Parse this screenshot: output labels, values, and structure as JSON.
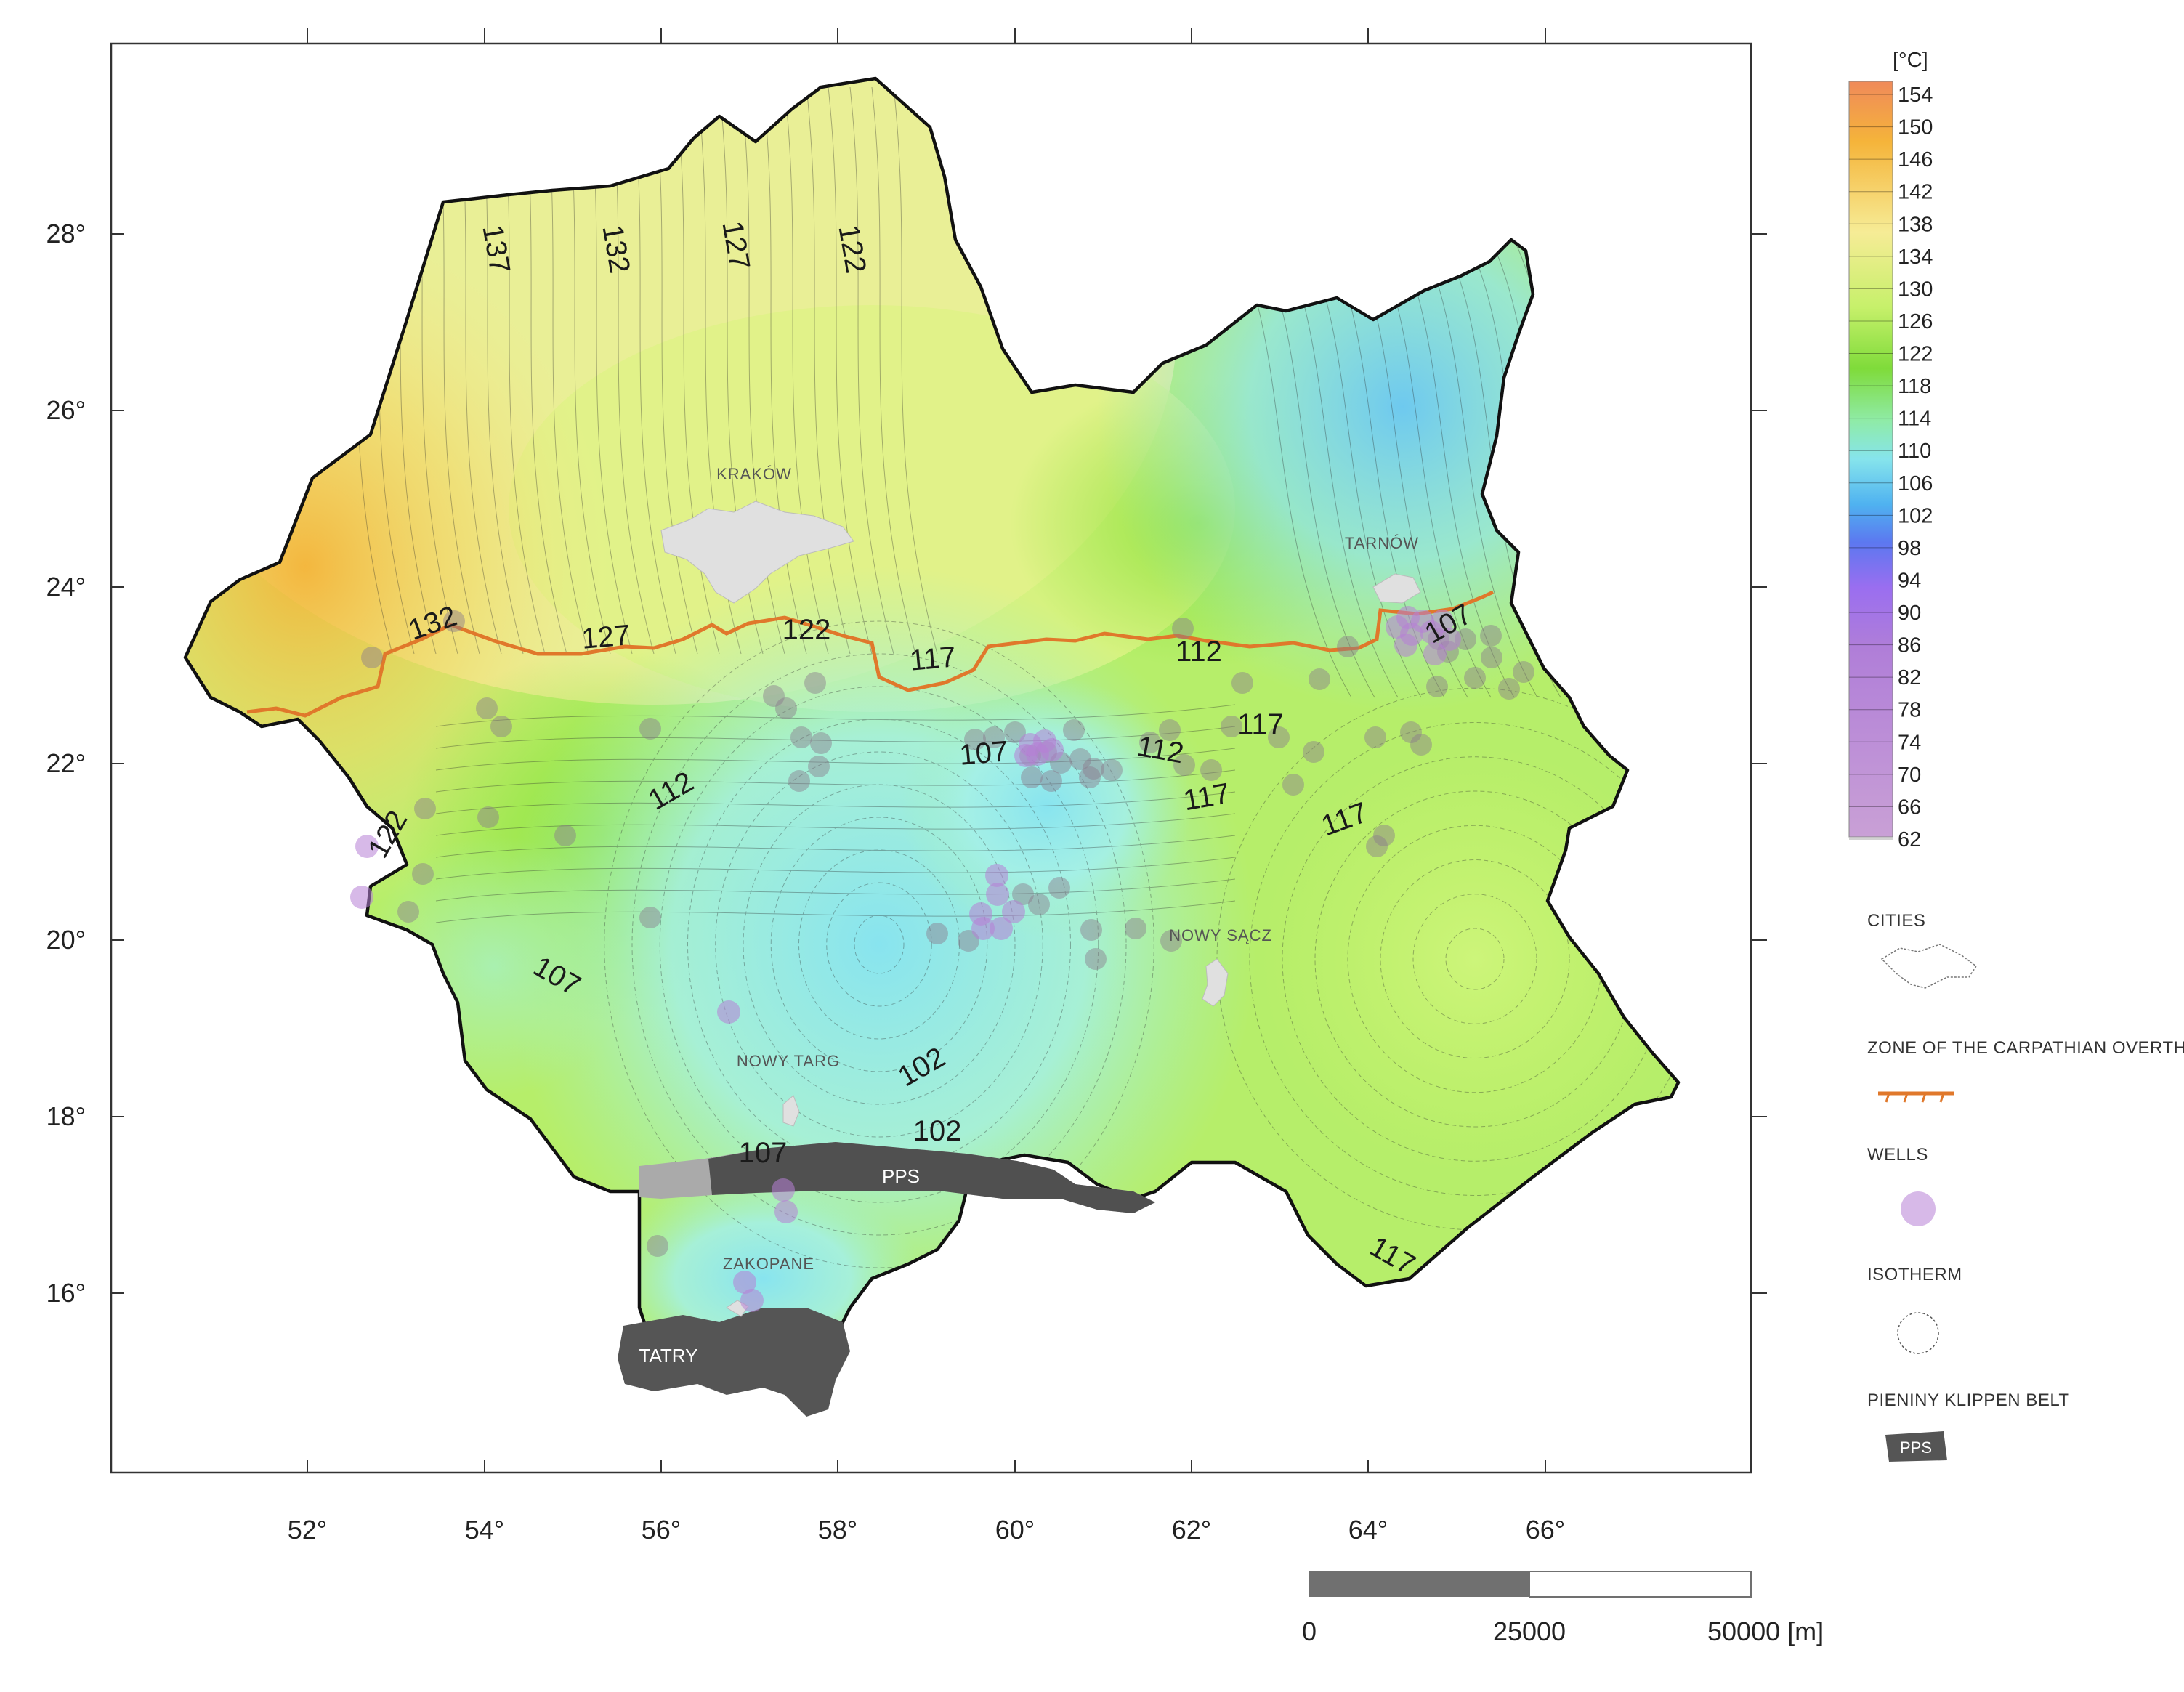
{
  "map": {
    "x_ticks": [
      "52°",
      "54°",
      "56°",
      "58°",
      "60°",
      "62°",
      "64°",
      "66°"
    ],
    "y_ticks": [
      "28°",
      "26°",
      "24°",
      "22°",
      "20°",
      "18°",
      "16°"
    ],
    "cities": [
      "KRAKÓW",
      "TARNÓW",
      "NOWY SĄCZ",
      "NOWY TARG",
      "ZAKOPANE"
    ],
    "features": {
      "pps": "PPS",
      "tatry": "TATRY"
    },
    "contour_labels": [
      "137",
      "132",
      "127",
      "122",
      "132",
      "127",
      "122",
      "117",
      "112",
      "107",
      "112",
      "117",
      "112",
      "107",
      "117",
      "122",
      "107",
      "102",
      "107",
      "102",
      "117",
      "117"
    ],
    "colors": {
      "overthrust": "#e0782b",
      "well": "#b77fd6",
      "border": "#111111"
    }
  },
  "colorbar": {
    "unit": "[°C]",
    "ticks": [
      "154",
      "150",
      "146",
      "142",
      "138",
      "134",
      "130",
      "126",
      "122",
      "118",
      "114",
      "110",
      "106",
      "102",
      "98",
      "94",
      "90",
      "86",
      "82",
      "78",
      "74",
      "70",
      "66",
      "62"
    ]
  },
  "legend": {
    "cities": "CITIES",
    "overthrust": "ZONE OF THE CARPATHIAN OVERTHRUST",
    "wells": "WELLS",
    "isotherm": "ISOTHERM",
    "pieniny": "PIENINY KLIPPEN BELT",
    "pps_swatch": "PPS"
  },
  "scalebar": {
    "labels": [
      "0",
      "25000",
      "50000 [m]"
    ]
  }
}
